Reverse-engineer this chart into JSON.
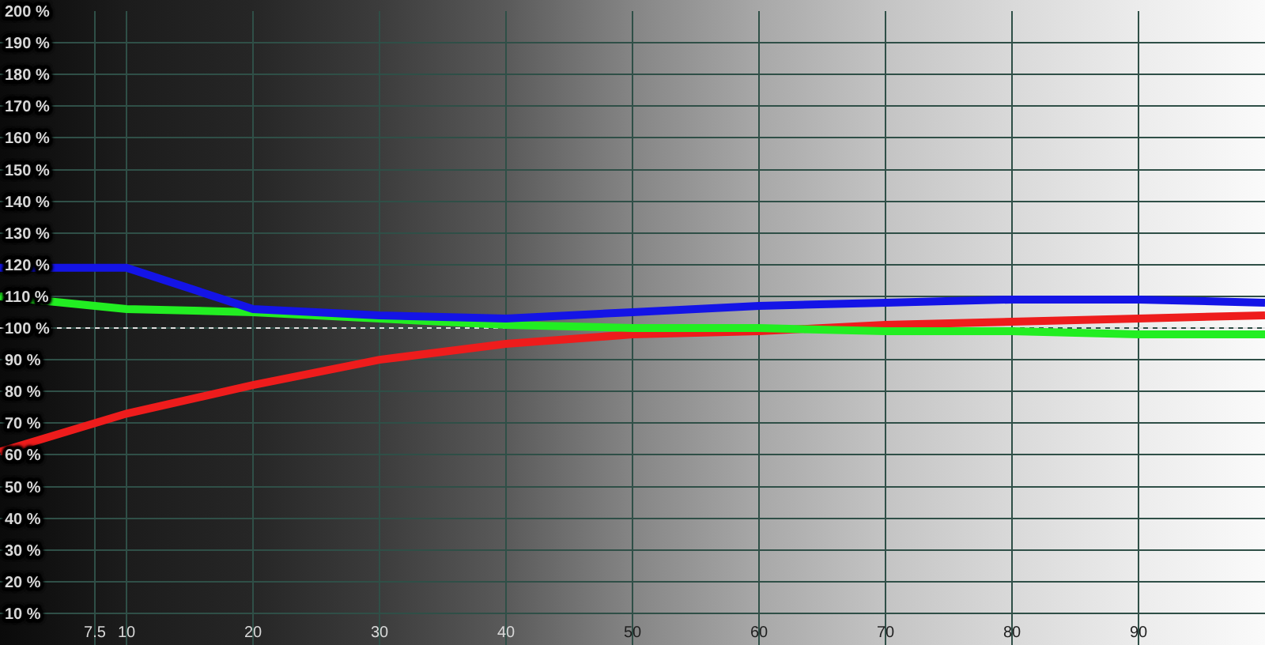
{
  "chart_data": {
    "type": "line",
    "x": [
      0,
      10,
      20,
      30,
      40,
      50,
      60,
      70,
      80,
      90,
      100
    ],
    "series": [
      {
        "color": "#ee1c1c",
        "values": [
          61,
          73,
          82,
          90,
          95,
          98,
          99,
          101,
          102,
          103,
          104
        ]
      },
      {
        "color": "#22ee22",
        "values": [
          110,
          106,
          105,
          103,
          101,
          100,
          100,
          99,
          99,
          98,
          98
        ]
      },
      {
        "color": "#1414e6",
        "values": [
          119,
          119,
          106,
          104,
          103,
          105,
          107,
          108,
          109,
          109,
          108
        ]
      }
    ],
    "xlim": [
      0,
      100
    ],
    "ylim": [
      0,
      200
    ],
    "xticks": [
      7.5,
      10,
      20,
      30,
      40,
      50,
      60,
      70,
      80,
      90
    ],
    "yticks": [
      {
        "value": 10,
        "label": "10 %"
      },
      {
        "value": 20,
        "label": "20 %"
      },
      {
        "value": 30,
        "label": "30 %"
      },
      {
        "value": 40,
        "label": "40 %"
      },
      {
        "value": 50,
        "label": "50 %"
      },
      {
        "value": 60,
        "label": "60 %"
      },
      {
        "value": 70,
        "label": "70 %"
      },
      {
        "value": 80,
        "label": "80 %"
      },
      {
        "value": 90,
        "label": "90 %"
      },
      {
        "value": 100,
        "label": "100 %"
      },
      {
        "value": 110,
        "label": "110 %"
      },
      {
        "value": 120,
        "label": "120 %"
      },
      {
        "value": 130,
        "label": "130 %"
      },
      {
        "value": 140,
        "label": "140 %"
      },
      {
        "value": 150,
        "label": "150 %"
      },
      {
        "value": 160,
        "label": "160 %"
      },
      {
        "value": 170,
        "label": "170 %"
      },
      {
        "value": 180,
        "label": "180 %"
      },
      {
        "value": 190,
        "label": "190 %"
      },
      {
        "value": 200,
        "label": "200 %"
      }
    ],
    "grid": true,
    "ref_lines": [
      {
        "axis": "y",
        "value": 100,
        "color": "#dddddd",
        "line_style": "dotted"
      }
    ]
  }
}
